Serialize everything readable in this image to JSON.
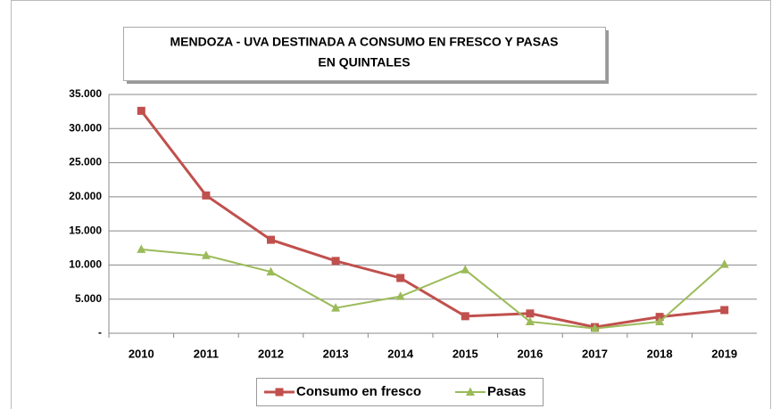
{
  "chart_data": {
    "type": "line",
    "title": [
      "MENDOZA - UVA DESTINADA A CONSUMO EN FRESCO Y PASAS",
      "EN QUINTALES"
    ],
    "categories": [
      "2010",
      "2011",
      "2012",
      "2013",
      "2014",
      "2015",
      "2016",
      "2017",
      "2018",
      "2019"
    ],
    "series": [
      {
        "name": "Consumo en fresco",
        "color": "#c0504d",
        "marker": "square",
        "values": [
          32600,
          20200,
          13700,
          10600,
          8100,
          2500,
          2900,
          900,
          2400,
          3400
        ]
      },
      {
        "name": "Pasas",
        "color": "#9bbb59",
        "marker": "triangle",
        "values": [
          12300,
          11400,
          9000,
          3700,
          5400,
          9300,
          1700,
          700,
          1700,
          10100
        ]
      }
    ],
    "ylim": [
      0,
      35000
    ],
    "yticks": [
      {
        "value": 0,
        "label": "-"
      },
      {
        "value": 5000,
        "label": "5.000"
      },
      {
        "value": 10000,
        "label": "10.000"
      },
      {
        "value": 15000,
        "label": "15.000"
      },
      {
        "value": 20000,
        "label": "20.000"
      },
      {
        "value": 25000,
        "label": "25.000"
      },
      {
        "value": 30000,
        "label": "30.000"
      },
      {
        "value": 35000,
        "label": "35.000"
      }
    ],
    "grid": true,
    "legend": "bottom"
  }
}
